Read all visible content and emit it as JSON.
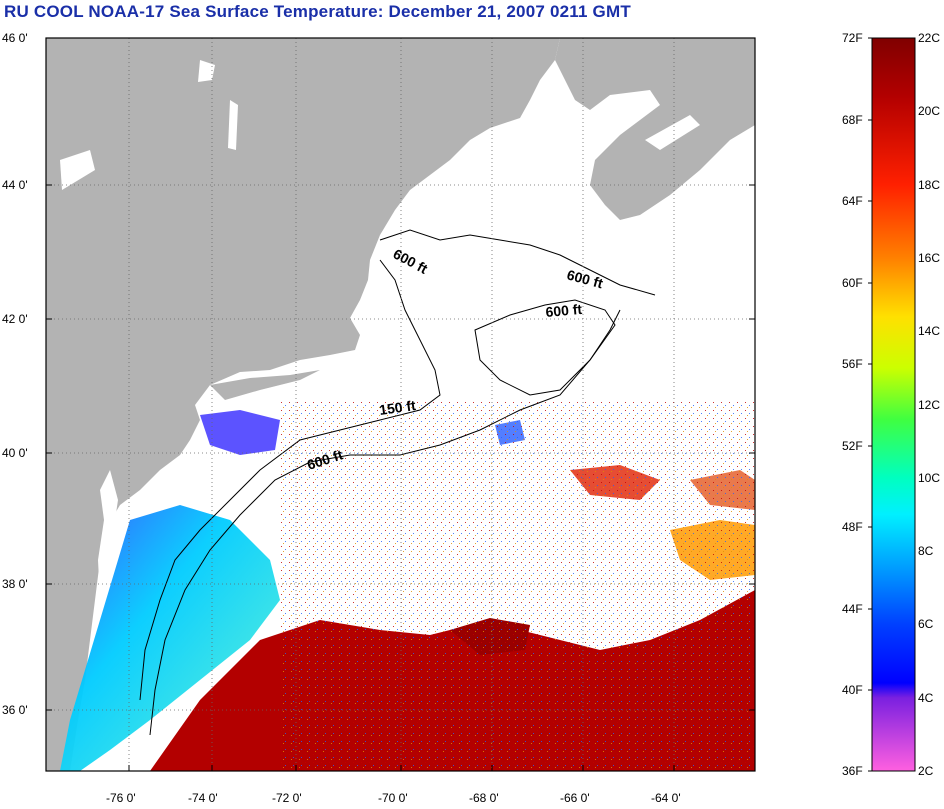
{
  "title": "RU COOL  NOAA-17  Sea Surface Temperature:  December 21, 2007 0211 GMT",
  "lat_ticks": [
    "46 0'",
    "44 0'",
    "42 0'",
    "40 0'",
    "38 0'",
    "36 0'"
  ],
  "lon_ticks": [
    "-76 0'",
    "-74 0'",
    "-72 0'",
    "-70 0'",
    "-68 0'",
    "-66 0'",
    "-64 0'"
  ],
  "contours": [
    "600 ft",
    "600 ft",
    "600 ft",
    "150 ft",
    "600 ft"
  ],
  "colorbar": {
    "fahrenheit": [
      "72F",
      "68F",
      "64F",
      "60F",
      "56F",
      "52F",
      "48F",
      "44F",
      "40F",
      "36F"
    ],
    "celsius": [
      "22C",
      "20C",
      "18C",
      "16C",
      "14C",
      "12C",
      "10C",
      "8C",
      "6C",
      "4C",
      "2C"
    ]
  },
  "colors": {
    "land": "#b3b3b3",
    "title": "#1a2fa8",
    "warm": "#b30000",
    "cold": "#00ccff"
  }
}
